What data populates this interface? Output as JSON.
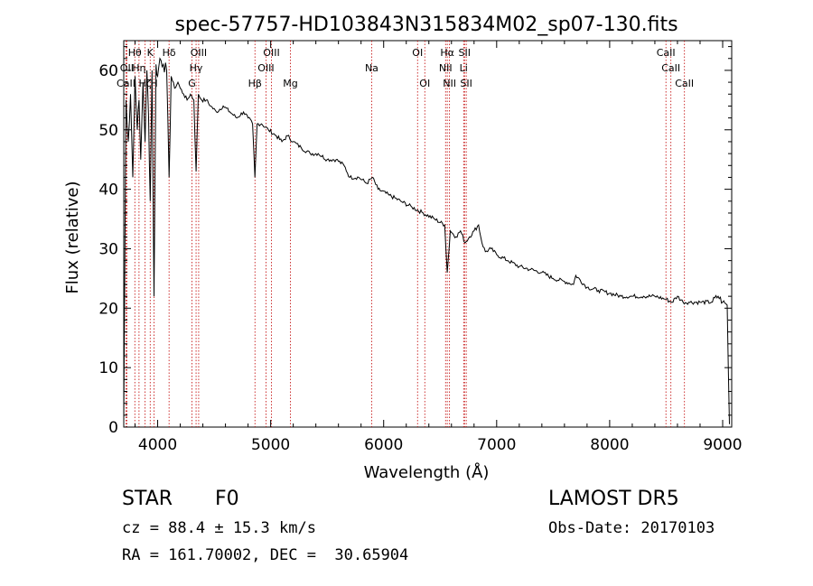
{
  "chart_data": {
    "type": "line",
    "title": "spec-57757-HD103843N315834M02_sp07-130.fits",
    "xlabel": "Wavelength (Å)",
    "ylabel": "Flux (relative)",
    "xlim": [
      3700,
      9080
    ],
    "ylim": [
      0,
      65
    ],
    "xticks": [
      4000,
      5000,
      6000,
      7000,
      8000,
      9000
    ],
    "yticks": [
      0,
      10,
      20,
      30,
      40,
      50,
      60
    ],
    "grid": false,
    "line_color": "#000000",
    "marker_color": "#c00000",
    "x": [
      3700,
      3710,
      3720,
      3740,
      3760,
      3780,
      3800,
      3820,
      3835,
      3850,
      3870,
      3889,
      3905,
      3920,
      3934,
      3950,
      3968,
      3985,
      4000,
      4020,
      4050,
      4080,
      4101,
      4120,
      4150,
      4180,
      4200,
      4230,
      4260,
      4290,
      4320,
      4340,
      4360,
      4390,
      4430,
      4470,
      4520,
      4580,
      4640,
      4700,
      4760,
      4800,
      4840,
      4861,
      4880,
      4920,
      4980,
      5050,
      5100,
      5150,
      5200,
      5270,
      5350,
      5420,
      5500,
      5580,
      5650,
      5700,
      5780,
      5850,
      5900,
      5950,
      6050,
      6150,
      6250,
      6350,
      6450,
      6540,
      6563,
      6590,
      6640,
      6680,
      6720,
      6760,
      6800,
      6840,
      6870,
      6900,
      6950,
      7000,
      7100,
      7200,
      7300,
      7400,
      7500,
      7600,
      7680,
      7700,
      7800,
      7900,
      8000,
      8100,
      8200,
      8300,
      8400,
      8500,
      8550,
      8600,
      8650,
      8700,
      8800,
      8900,
      8960,
      9000,
      9040,
      9060
    ],
    "y": [
      0.5,
      30,
      55,
      48,
      56,
      42,
      59,
      50,
      55,
      45,
      58,
      48,
      60,
      52,
      38,
      60,
      22,
      61,
      59,
      62,
      61,
      60,
      42,
      59,
      57,
      58,
      57,
      56,
      55,
      56,
      55,
      43,
      56,
      55,
      55,
      54,
      53,
      54,
      53,
      52,
      53,
      52,
      51,
      42,
      51,
      51,
      50,
      49,
      48,
      49,
      48,
      47,
      46,
      46,
      45,
      45,
      44,
      42,
      42,
      41,
      42,
      40,
      39,
      38,
      37,
      36,
      35,
      34,
      26,
      33,
      32,
      33,
      31,
      32,
      33,
      34,
      31,
      29.5,
      30,
      29,
      28,
      27,
      26.5,
      26,
      25,
      24.5,
      24,
      25.5,
      23.5,
      23,
      22.5,
      22,
      22,
      22,
      22,
      21.5,
      21,
      22,
      21,
      21,
      21,
      21,
      22,
      21,
      20.5,
      0.5
    ],
    "lines": [
      {
        "wl": 3720,
        "label": "CaII",
        "row": 3
      },
      {
        "wl": 3727,
        "label": "OII",
        "row": 2
      },
      {
        "wl": 3798,
        "label": "Hθ",
        "row": 1
      },
      {
        "wl": 3835,
        "label": "Hη",
        "row": 2
      },
      {
        "wl": 3889,
        "label": "Hζ",
        "row": 3
      },
      {
        "wl": 3934,
        "label": "K",
        "row": 1
      },
      {
        "wl": 3968,
        "label": "H",
        "row": 3
      },
      {
        "wl": 4101,
        "label": "Hδ",
        "row": 1
      },
      {
        "wl": 4304,
        "label": "G",
        "row": 3
      },
      {
        "wl": 4340,
        "label": "Hγ",
        "row": 2
      },
      {
        "wl": 4363,
        "label": "OIII",
        "row": 1
      },
      {
        "wl": 4861,
        "label": "Hβ",
        "row": 3
      },
      {
        "wl": 4959,
        "label": "OIII",
        "row": 2
      },
      {
        "wl": 5007,
        "label": "OIII",
        "row": 1
      },
      {
        "wl": 5175,
        "label": "Mg",
        "row": 3
      },
      {
        "wl": 5894,
        "label": "Na",
        "row": 2
      },
      {
        "wl": 6300,
        "label": "OI",
        "row": 1
      },
      {
        "wl": 6364,
        "label": "OI",
        "row": 3
      },
      {
        "wl": 6548,
        "label": "NII",
        "row": 2
      },
      {
        "wl": 6563,
        "label": "Hα",
        "row": 1
      },
      {
        "wl": 6583,
        "label": "NII",
        "row": 3
      },
      {
        "wl": 6708,
        "label": "Li",
        "row": 2
      },
      {
        "wl": 6716,
        "label": "SII",
        "row": 1
      },
      {
        "wl": 6731,
        "label": "SII",
        "row": 3
      },
      {
        "wl": 8498,
        "label": "CaII",
        "row": 1
      },
      {
        "wl": 8542,
        "label": "CaII",
        "row": 2
      },
      {
        "wl": 8662,
        "label": "CaII",
        "row": 3
      }
    ]
  },
  "info": {
    "class_label": "STAR",
    "subclass": "F0",
    "survey": "LAMOST DR5",
    "cz": "cz = 88.4 ± 15.3 km/s",
    "obs_date": "Obs-Date: 20170103",
    "radec": "RA = 161.70002, DEC =  30.65904"
  }
}
